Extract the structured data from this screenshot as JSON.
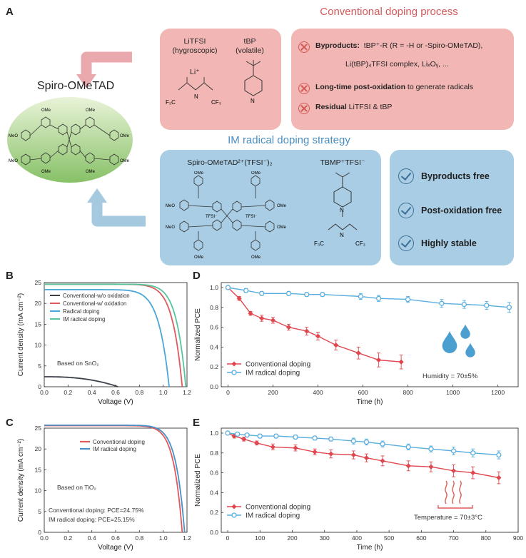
{
  "panel_a": {
    "letter": "A",
    "conventional_title": "Conventional doping process",
    "im_title": "IM radical doping strategy",
    "spiro_label": "Spiro-OMeTAD",
    "molecule_labels": {
      "ome": "OMe",
      "meo": "MeO"
    },
    "litfsi": {
      "name": "LiTFSI",
      "note": "(hygroscopic)",
      "ion": "Li⁺",
      "cf3": "F₃C"
    },
    "tbp": {
      "name": "tBP",
      "note": "(volatile)"
    },
    "conventional_issues": [
      {
        "bold": "Byproducts:",
        "text": "tBP⁺-R (R = -H or -Spiro-OMeTAD),"
      },
      {
        "bold": "",
        "text": "Li(tBP)₄TFSI complex,  LiₓOᵧ,  ..."
      },
      {
        "bold": "Long-time post-oxidation",
        "text": " to generate radicals"
      },
      {
        "bold": "Residual",
        "text": " LiTFSI & tBP"
      }
    ],
    "spiro_radical_label": "Spiro-OMeTAD²⁺(TFSI⁻)₂",
    "tfsi_label": "TFSI⁻",
    "tbmp_label": "TBMP⁺TFSI⁻",
    "benefits": [
      "Byproducts free",
      "Post-oxidation free",
      "Highly stable"
    ],
    "colors": {
      "conv": "#d65a5a",
      "im": "#4a8fbf",
      "pinkbox": "#f2b7b5",
      "bluebox": "#a9cde4"
    }
  },
  "chart_data": [
    {
      "id": "B",
      "type": "line",
      "xlabel": "Voltage (V)",
      "ylabel": "Current density (mA cm⁻²)",
      "xlim": [
        0.0,
        1.2
      ],
      "ylim": [
        0,
        25
      ],
      "xticks": [
        "0.0",
        "0.2",
        "0.4",
        "0.6",
        "0.8",
        "1.0",
        "1.2"
      ],
      "yticks": [
        "0",
        "5",
        "10",
        "15",
        "20",
        "25"
      ],
      "annotation": "Based on SnO₂",
      "legend_position": "upper-left",
      "series": [
        {
          "name": "Conventional-w/o oxidation",
          "color": "#3b3f48",
          "jsc": 2.4,
          "voc": 0.62,
          "n": 2.5
        },
        {
          "name": "Conventional-w/ oxidation",
          "color": "#e0595b",
          "jsc": 24.6,
          "voc": 1.16,
          "n": 14
        },
        {
          "name": "Radical doping",
          "color": "#4aa6d8",
          "jsc": 23.3,
          "voc": 1.05,
          "n": 12
        },
        {
          "name": "IM radical doping",
          "color": "#55c59b",
          "jsc": 24.6,
          "voc": 1.19,
          "n": 15
        }
      ]
    },
    {
      "id": "C",
      "type": "line",
      "xlabel": "Voltage (V)",
      "ylabel": "Current density (mA cm⁻²)",
      "xlim": [
        0.0,
        1.2
      ],
      "ylim": [
        0,
        25
      ],
      "xticks": [
        "0.0",
        "0.2",
        "0.4",
        "0.6",
        "0.8",
        "1.0",
        "1.2"
      ],
      "yticks": [
        "0",
        "5",
        "10",
        "15",
        "20",
        "25"
      ],
      "annotations": [
        "Based on TiO₂",
        "Conventional doping: PCE=24.75%",
        "IM radical doping: PCE=25.15%"
      ],
      "legend_position": "upper-center",
      "series": [
        {
          "name": "Conventional doping",
          "color": "#e0595b",
          "jsc": 25.6,
          "voc": 1.16,
          "n": 16
        },
        {
          "name": "IM radical doping",
          "color": "#4a90c8",
          "jsc": 25.7,
          "voc": 1.18,
          "n": 16
        }
      ]
    },
    {
      "id": "D",
      "type": "line",
      "xlabel": "Time (h)",
      "ylabel": "Normalized PCE",
      "xlim": [
        -30,
        1290
      ],
      "ylim": [
        0.0,
        1.05
      ],
      "xticks": [
        0,
        200,
        400,
        600,
        800,
        1000,
        1200
      ],
      "yticks": [
        "0.0",
        "0.2",
        "0.4",
        "0.6",
        "0.8",
        "1.0"
      ],
      "annotation": "Humidity = 70±5%",
      "legend_position": "lower-left",
      "series": [
        {
          "name": "Conventional doping",
          "color": "#e0474f",
          "marker": "diamond",
          "x": [
            0,
            50,
            100,
            150,
            200,
            270,
            350,
            400,
            480,
            580,
            670,
            770
          ],
          "y": [
            1.0,
            0.89,
            0.74,
            0.69,
            0.67,
            0.6,
            0.56,
            0.51,
            0.42,
            0.34,
            0.27,
            0.25
          ],
          "err": [
            0.01,
            0.02,
            0.02,
            0.03,
            0.03,
            0.03,
            0.04,
            0.04,
            0.05,
            0.06,
            0.07,
            0.07
          ]
        },
        {
          "name": "IM radical doping",
          "color": "#5aaee0",
          "marker": "circle",
          "x": [
            0,
            80,
            150,
            270,
            350,
            420,
            590,
            670,
            800,
            950,
            1050,
            1150,
            1250
          ],
          "y": [
            1.0,
            0.97,
            0.94,
            0.94,
            0.93,
            0.93,
            0.91,
            0.89,
            0.88,
            0.84,
            0.83,
            0.82,
            0.8
          ],
          "err": [
            0.01,
            0.02,
            0.02,
            0.02,
            0.02,
            0.02,
            0.03,
            0.03,
            0.03,
            0.04,
            0.04,
            0.04,
            0.05
          ]
        }
      ]
    },
    {
      "id": "E",
      "type": "line",
      "xlabel": "Time (h)",
      "ylabel": "Normalized PCE",
      "xlim": [
        -20,
        900
      ],
      "ylim": [
        0.0,
        1.05
      ],
      "xticks": [
        0,
        100,
        200,
        300,
        400,
        500,
        600,
        700,
        800,
        900
      ],
      "yticks": [
        "0.0",
        "0.2",
        "0.4",
        "0.6",
        "0.8",
        "1.0"
      ],
      "annotation": "Temperature = 70±3°C",
      "legend_position": "lower-left",
      "series": [
        {
          "name": "Conventional doping",
          "color": "#e0474f",
          "marker": "diamond",
          "x": [
            0,
            20,
            50,
            90,
            140,
            210,
            270,
            320,
            390,
            430,
            480,
            560,
            630,
            700,
            760,
            840
          ],
          "y": [
            1.0,
            0.97,
            0.94,
            0.9,
            0.86,
            0.85,
            0.81,
            0.79,
            0.78,
            0.75,
            0.72,
            0.67,
            0.66,
            0.62,
            0.6,
            0.55
          ],
          "err": [
            0.01,
            0.02,
            0.02,
            0.02,
            0.03,
            0.03,
            0.03,
            0.04,
            0.04,
            0.04,
            0.05,
            0.05,
            0.05,
            0.06,
            0.06,
            0.06
          ]
        },
        {
          "name": "IM radical doping",
          "color": "#5aaee0",
          "marker": "circle",
          "x": [
            0,
            30,
            60,
            100,
            150,
            210,
            270,
            320,
            390,
            430,
            480,
            560,
            630,
            700,
            760,
            840
          ],
          "y": [
            1.0,
            0.99,
            0.98,
            0.97,
            0.97,
            0.96,
            0.95,
            0.94,
            0.92,
            0.91,
            0.89,
            0.86,
            0.84,
            0.82,
            0.8,
            0.78
          ],
          "err": [
            0.01,
            0.01,
            0.01,
            0.02,
            0.02,
            0.02,
            0.02,
            0.02,
            0.03,
            0.03,
            0.03,
            0.03,
            0.03,
            0.04,
            0.04,
            0.04
          ]
        }
      ]
    }
  ]
}
